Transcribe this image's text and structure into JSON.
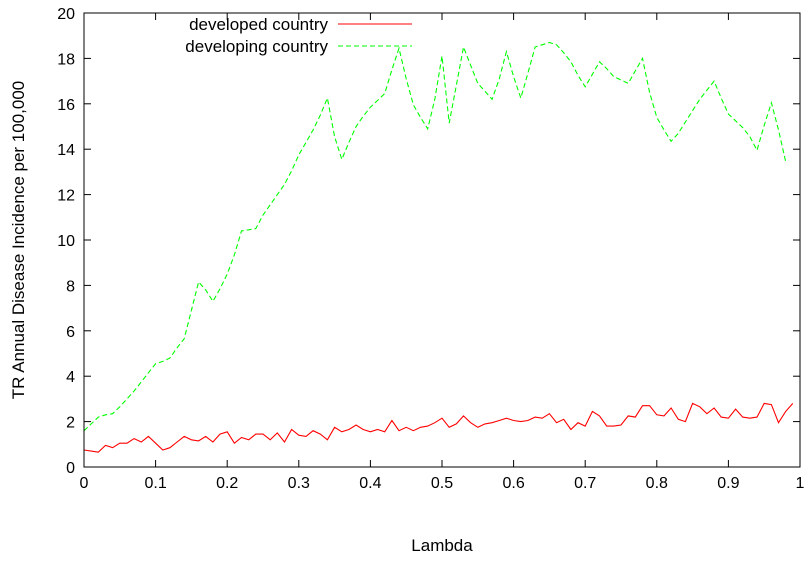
{
  "chart_data": {
    "type": "line",
    "title": "",
    "xlabel": "Lambda",
    "ylabel": "TR Annual Disease Incidence per 100,000",
    "xlim": [
      0,
      1
    ],
    "ylim": [
      0,
      20
    ],
    "xticks": [
      0,
      0.1,
      0.2,
      0.3,
      0.4,
      0.5,
      0.6,
      0.7,
      0.8,
      0.9,
      1
    ],
    "xtick_labels": [
      "0",
      "0.1",
      "0.2",
      "0.3",
      "0.4",
      "0.5",
      "0.6",
      "0.7",
      "0.8",
      "0.9",
      "1"
    ],
    "yticks": [
      0,
      2,
      4,
      6,
      8,
      10,
      12,
      14,
      16,
      18,
      20
    ],
    "ytick_labels": [
      "0",
      "2",
      "4",
      "6",
      "8",
      "10",
      "12",
      "14",
      "16",
      "18",
      "20"
    ],
    "grid": false,
    "legend_position": "top-left",
    "series": [
      {
        "name": "developed country",
        "color": "#ff0000",
        "dash": "solid",
        "x": [
          0,
          0.01,
          0.02,
          0.03,
          0.04,
          0.05,
          0.06,
          0.07,
          0.08,
          0.09,
          0.1,
          0.11,
          0.12,
          0.13,
          0.14,
          0.15,
          0.16,
          0.17,
          0.18,
          0.19,
          0.2,
          0.21,
          0.22,
          0.23,
          0.24,
          0.25,
          0.26,
          0.27,
          0.28,
          0.29,
          0.3,
          0.31,
          0.32,
          0.33,
          0.34,
          0.35,
          0.36,
          0.37,
          0.38,
          0.39,
          0.4,
          0.41,
          0.42,
          0.43,
          0.44,
          0.45,
          0.46,
          0.47,
          0.48,
          0.49,
          0.5,
          0.51,
          0.52,
          0.53,
          0.54,
          0.55,
          0.56,
          0.57,
          0.58,
          0.59,
          0.6,
          0.61,
          0.62,
          0.63,
          0.64,
          0.65,
          0.66,
          0.67,
          0.68,
          0.69,
          0.7,
          0.71,
          0.72,
          0.73,
          0.74,
          0.75,
          0.76,
          0.77,
          0.78,
          0.79,
          0.8,
          0.81,
          0.82,
          0.83,
          0.84,
          0.85,
          0.86,
          0.87,
          0.88,
          0.89,
          0.9,
          0.91,
          0.92,
          0.93,
          0.94,
          0.95,
          0.96,
          0.97,
          0.98,
          0.99
        ],
        "y": [
          0.75,
          0.7,
          0.65,
          0.95,
          0.85,
          1.05,
          1.05,
          1.25,
          1.1,
          1.35,
          1.05,
          0.75,
          0.85,
          1.1,
          1.35,
          1.2,
          1.15,
          1.35,
          1.1,
          1.45,
          1.55,
          1.05,
          1.3,
          1.2,
          1.45,
          1.45,
          1.2,
          1.5,
          1.1,
          1.65,
          1.4,
          1.35,
          1.6,
          1.45,
          1.2,
          1.75,
          1.55,
          1.65,
          1.85,
          1.65,
          1.55,
          1.65,
          1.55,
          2.05,
          1.6,
          1.75,
          1.6,
          1.75,
          1.8,
          1.95,
          2.15,
          1.75,
          1.9,
          2.25,
          1.95,
          1.75,
          1.9,
          1.95,
          2.05,
          2.15,
          2.05,
          2.0,
          2.05,
          2.2,
          2.15,
          2.35,
          1.95,
          2.1,
          1.65,
          1.95,
          1.8,
          2.45,
          2.25,
          1.8,
          1.8,
          1.85,
          2.25,
          2.2,
          2.7,
          2.7,
          2.3,
          2.25,
          2.6,
          2.1,
          2.0,
          2.8,
          2.65,
          2.35,
          2.6,
          2.2,
          2.15,
          2.55,
          2.2,
          2.15,
          2.2,
          2.8,
          2.75,
          1.95,
          2.45,
          2.8
        ]
      },
      {
        "name": "developing country",
        "color": "#00ff00",
        "dash": "dashed",
        "x": [
          0,
          0.01,
          0.02,
          0.03,
          0.04,
          0.05,
          0.06,
          0.07,
          0.08,
          0.09,
          0.1,
          0.11,
          0.12,
          0.13,
          0.14,
          0.15,
          0.16,
          0.17,
          0.18,
          0.19,
          0.2,
          0.21,
          0.22,
          0.23,
          0.24,
          0.25,
          0.26,
          0.27,
          0.28,
          0.29,
          0.3,
          0.31,
          0.32,
          0.33,
          0.34,
          0.35,
          0.36,
          0.37,
          0.38,
          0.39,
          0.4,
          0.41,
          0.42,
          0.43,
          0.44,
          0.45,
          0.46,
          0.47,
          0.48,
          0.49,
          0.5,
          0.51,
          0.52,
          0.53,
          0.54,
          0.55,
          0.56,
          0.57,
          0.58,
          0.59,
          0.6,
          0.61,
          0.62,
          0.63,
          0.64,
          0.65,
          0.66,
          0.67,
          0.68,
          0.69,
          0.7,
          0.71,
          0.72,
          0.73,
          0.74,
          0.75,
          0.76,
          0.77,
          0.78,
          0.79,
          0.8,
          0.81,
          0.82,
          0.83,
          0.84,
          0.85,
          0.86,
          0.87,
          0.88,
          0.89,
          0.9,
          0.91,
          0.92,
          0.93,
          0.94,
          0.95,
          0.96,
          0.97,
          0.98
        ],
        "y": [
          1.6,
          1.9,
          2.2,
          2.3,
          2.35,
          2.65,
          3.0,
          3.35,
          3.75,
          4.15,
          4.55,
          4.65,
          4.8,
          5.25,
          5.65,
          6.9,
          8.15,
          7.8,
          7.3,
          7.85,
          8.5,
          9.35,
          10.4,
          10.45,
          10.5,
          11.1,
          11.55,
          12.0,
          12.45,
          13.05,
          13.75,
          14.3,
          14.85,
          15.5,
          16.25,
          14.55,
          13.55,
          14.3,
          15.0,
          15.45,
          15.85,
          16.15,
          16.45,
          17.5,
          18.45,
          17.1,
          15.95,
          15.4,
          14.9,
          16.2,
          18.1,
          15.15,
          16.8,
          18.5,
          17.7,
          16.9,
          16.55,
          16.2,
          17.1,
          18.3,
          17.2,
          16.25,
          17.35,
          18.5,
          18.6,
          18.7,
          18.6,
          18.25,
          17.85,
          17.25,
          16.75,
          17.3,
          17.85,
          17.55,
          17.2,
          17.05,
          16.9,
          17.45,
          18.0,
          16.5,
          15.4,
          14.85,
          14.35,
          14.7,
          15.2,
          15.7,
          16.2,
          16.6,
          17.0,
          16.25,
          15.55,
          15.25,
          14.95,
          14.55,
          13.95,
          15.05,
          16.05,
          14.85,
          13.45
        ]
      }
    ]
  }
}
